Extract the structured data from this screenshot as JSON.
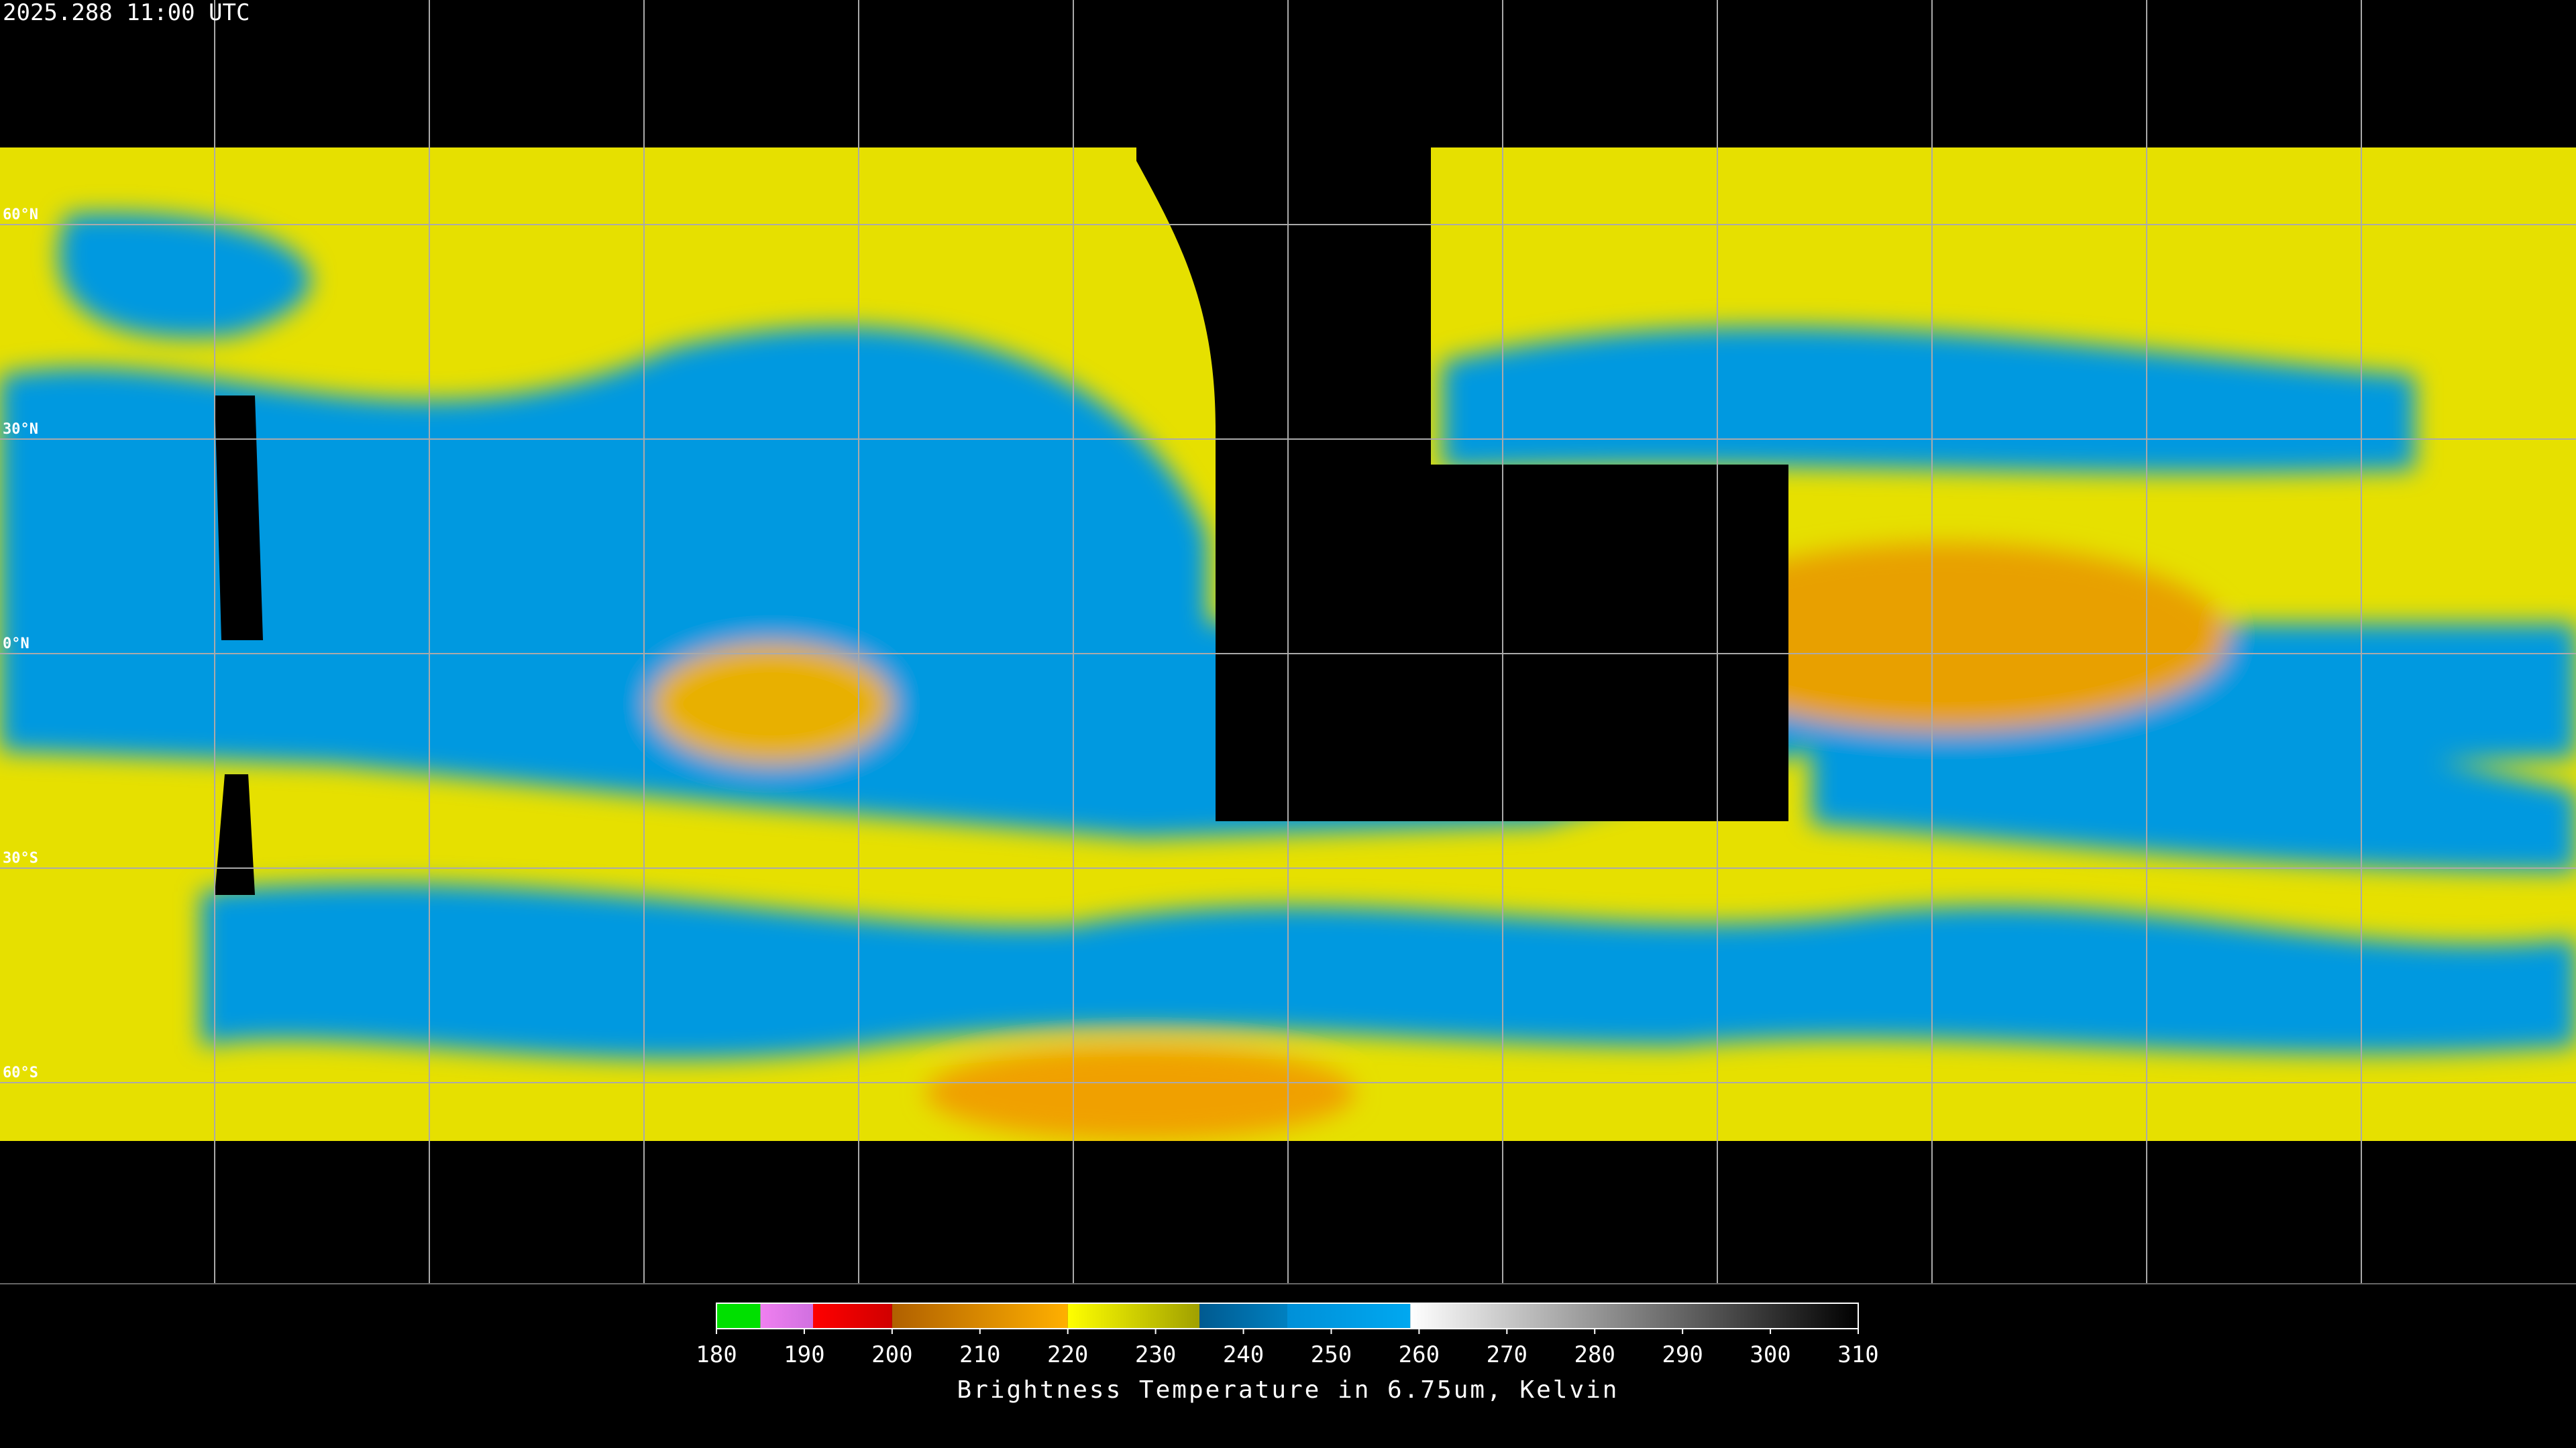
{
  "timestamp": "2025.288 11:00 UTC",
  "latitudes": [
    {
      "value": 60,
      "label": "60°N"
    },
    {
      "value": 30,
      "label": "30°N"
    },
    {
      "value": 0,
      "label": "0°N"
    },
    {
      "value": -30,
      "label": "30°S"
    },
    {
      "value": -60,
      "label": "60°S"
    }
  ],
  "colorbar": {
    "title": "Brightness Temperature in 6.75um, Kelvin",
    "lim": [
      180,
      310
    ],
    "ticks": [
      180,
      190,
      200,
      210,
      220,
      230,
      240,
      250,
      260,
      270,
      280,
      290,
      300,
      310
    ],
    "segments": [
      {
        "from": 180,
        "to": 185,
        "colors": [
          "#00e000",
          "#00e000"
        ]
      },
      {
        "from": 185,
        "to": 191,
        "colors": [
          "#f080f0",
          "#d070e0"
        ]
      },
      {
        "from": 191,
        "to": 200,
        "colors": [
          "#ff0000",
          "#d00000"
        ]
      },
      {
        "from": 200,
        "to": 220,
        "colors": [
          "#b06000",
          "#ffb000"
        ]
      },
      {
        "from": 220,
        "to": 235,
        "colors": [
          "#ffff00",
          "#a0a000"
        ]
      },
      {
        "from": 235,
        "to": 245,
        "colors": [
          "#005a90",
          "#0080c0"
        ]
      },
      {
        "from": 245,
        "to": 259,
        "colors": [
          "#0090d8",
          "#00a8f0"
        ]
      },
      {
        "from": 259,
        "to": 310,
        "colors": [
          "#ffffff",
          "#000000"
        ]
      }
    ]
  }
}
